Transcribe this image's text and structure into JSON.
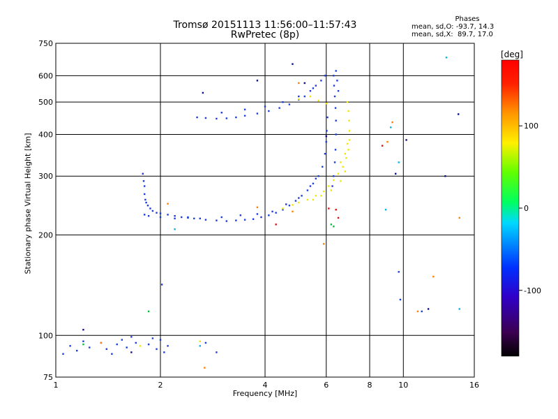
{
  "title": {
    "line1": "Tromsø 20151113 11:56:00–11:57:43",
    "line2": "RwPretec (8p)"
  },
  "phase_box": {
    "header": "Phases",
    "line_o": "mean, sd,O: -93.7, 14.3",
    "line_x": "mean, sd,X:  89.7, 17.0"
  },
  "colorbar": {
    "unit": "[deg]",
    "ticks": [
      "100",
      "0",
      "-100"
    ],
    "tick_values": [
      100,
      0,
      -100
    ],
    "range": [
      -180,
      180
    ]
  },
  "chart_data": {
    "type": "scatter",
    "xlabel": "Frequency [MHz]",
    "ylabel": "Stationary phase Virtual Height [km]",
    "x_scale": "log",
    "y_scale": "log",
    "xlim": [
      1,
      16
    ],
    "ylim": [
      75,
      750
    ],
    "x_ticks": [
      1,
      2,
      4,
      6,
      8,
      10,
      16
    ],
    "x_tick_labels": [
      "1",
      "2",
      "4",
      "6",
      "8",
      "10",
      "16"
    ],
    "y_ticks": [
      75,
      100,
      200,
      300,
      400,
      500,
      600,
      750
    ],
    "y_tick_labels": [
      "75",
      "100",
      "200",
      "300",
      "400",
      "500",
      "600",
      "750"
    ],
    "grid": true,
    "series": [
      {
        "color": "#1a3cdc",
        "points": [
          [
            1.78,
            305
          ],
          [
            1.79,
            290
          ],
          [
            1.8,
            280
          ],
          [
            1.8,
            265
          ],
          [
            1.81,
            255
          ],
          [
            1.82,
            250
          ],
          [
            1.84,
            245
          ],
          [
            1.87,
            240
          ],
          [
            1.9,
            236
          ],
          [
            1.95,
            233
          ],
          [
            2.0,
            232
          ],
          [
            2.1,
            230
          ],
          [
            2.2,
            228
          ],
          [
            2.3,
            226
          ],
          [
            2.4,
            225
          ],
          [
            2.5,
            224
          ],
          [
            2.7,
            222
          ],
          [
            2.9,
            221
          ],
          [
            3.1,
            220
          ],
          [
            3.3,
            221
          ],
          [
            3.5,
            222
          ],
          [
            3.7,
            223
          ],
          [
            3.9,
            226
          ],
          [
            4.1,
            229
          ],
          [
            4.3,
            233
          ],
          [
            4.5,
            238
          ],
          [
            4.7,
            245
          ],
          [
            4.9,
            253
          ],
          [
            5.1,
            262
          ],
          [
            5.3,
            272
          ],
          [
            5.5,
            285
          ],
          [
            5.7,
            300
          ],
          [
            5.85,
            320
          ],
          [
            5.95,
            350
          ],
          [
            6.0,
            380
          ],
          [
            6.02,
            410
          ],
          [
            6.05,
            450
          ],
          [
            1.8,
            230
          ],
          [
            1.85,
            228
          ],
          [
            2.0,
            226
          ],
          [
            2.2,
            224
          ],
          [
            2.4,
            226
          ],
          [
            2.6,
            224
          ],
          [
            3.0,
            226
          ],
          [
            3.4,
            229
          ],
          [
            3.8,
            231
          ],
          [
            4.2,
            235
          ],
          [
            4.6,
            247
          ],
          [
            5.0,
            258
          ],
          [
            5.4,
            280
          ],
          [
            5.6,
            295
          ],
          [
            2.55,
            450
          ],
          [
            2.7,
            448
          ],
          [
            2.9,
            446
          ],
          [
            3.1,
            447
          ],
          [
            3.3,
            450
          ],
          [
            3.5,
            455
          ],
          [
            3.8,
            462
          ],
          [
            4.1,
            470
          ],
          [
            4.4,
            480
          ],
          [
            4.7,
            492
          ],
          [
            5.0,
            508
          ],
          [
            5.2,
            520
          ],
          [
            5.4,
            540
          ],
          [
            5.6,
            560
          ],
          [
            5.8,
            580
          ],
          [
            5.95,
            600
          ],
          [
            3.0,
            465
          ],
          [
            3.5,
            475
          ],
          [
            4.0,
            485
          ],
          [
            4.5,
            500
          ],
          [
            5.0,
            520
          ],
          [
            5.5,
            550
          ],
          [
            6.3,
            600
          ],
          [
            6.32,
            560
          ],
          [
            6.35,
            520
          ],
          [
            6.38,
            480
          ],
          [
            6.4,
            440
          ],
          [
            6.4,
            400
          ],
          [
            6.38,
            360
          ],
          [
            6.35,
            330
          ],
          [
            6.3,
            300
          ],
          [
            6.25,
            280
          ],
          [
            6.4,
            620
          ],
          [
            6.45,
            580
          ],
          [
            6.5,
            540
          ],
          [
            1.05,
            88
          ],
          [
            1.1,
            93
          ],
          [
            1.15,
            90
          ],
          [
            1.2,
            96
          ],
          [
            1.25,
            92
          ],
          [
            1.35,
            95
          ],
          [
            1.4,
            91
          ],
          [
            1.45,
            88
          ],
          [
            1.5,
            94
          ],
          [
            1.55,
            97
          ],
          [
            1.6,
            92
          ],
          [
            1.65,
            99
          ],
          [
            1.7,
            95
          ],
          [
            1.85,
            94
          ],
          [
            1.9,
            98
          ],
          [
            1.95,
            91
          ],
          [
            2.0,
            97
          ],
          [
            2.05,
            89
          ],
          [
            2.1,
            93
          ],
          [
            2.02,
            142
          ],
          [
            2.7,
            95
          ],
          [
            2.9,
            89
          ],
          [
            11.3,
            118
          ],
          [
            9.7,
            155
          ],
          [
            9.8,
            128
          ]
        ]
      },
      {
        "color": "#f0e600",
        "points": [
          [
            4.5,
            240
          ],
          [
            4.8,
            246
          ],
          [
            5.0,
            250
          ],
          [
            5.3,
            255
          ],
          [
            5.6,
            262
          ],
          [
            5.9,
            270
          ],
          [
            6.1,
            280
          ],
          [
            6.3,
            292
          ],
          [
            6.5,
            305
          ],
          [
            6.7,
            320
          ],
          [
            6.85,
            340
          ],
          [
            6.95,
            360
          ],
          [
            7.0,
            385
          ],
          [
            7.0,
            410
          ],
          [
            6.98,
            440
          ],
          [
            6.95,
            470
          ],
          [
            6.9,
            500
          ],
          [
            5.5,
            255
          ],
          [
            5.8,
            262
          ],
          [
            6.2,
            272
          ],
          [
            6.6,
            290
          ],
          [
            6.8,
            310
          ],
          [
            6.6,
            330
          ],
          [
            6.8,
            350
          ],
          [
            6.9,
            375
          ],
          [
            5.0,
            510
          ],
          [
            5.4,
            520
          ],
          [
            5.7,
            505
          ],
          [
            6.0,
            495
          ],
          [
            1.75,
            93
          ],
          [
            2.6,
            96
          ]
        ]
      },
      {
        "color": "#ff8000",
        "points": [
          [
            3.8,
            242
          ],
          [
            4.8,
            235
          ],
          [
            5.9,
            188
          ],
          [
            9.0,
            380
          ],
          [
            9.3,
            435
          ],
          [
            11.0,
            118
          ],
          [
            12.2,
            150
          ],
          [
            14.5,
            225
          ],
          [
            5.0,
            570
          ],
          [
            2.1,
            248
          ],
          [
            1.35,
            95
          ],
          [
            2.68,
            80
          ]
        ]
      },
      {
        "color": "#dc1010",
        "points": [
          [
            6.1,
            240
          ],
          [
            6.4,
            238
          ],
          [
            6.5,
            225
          ],
          [
            8.7,
            370
          ],
          [
            4.3,
            215
          ]
        ]
      },
      {
        "color": "#00b4e6",
        "points": [
          [
            2.2,
            208
          ],
          [
            2.6,
            93
          ],
          [
            13.3,
            680
          ],
          [
            14.5,
            120
          ],
          [
            9.7,
            330
          ],
          [
            8.9,
            238
          ],
          [
            9.2,
            420
          ]
        ]
      },
      {
        "color": "#00c040",
        "points": [
          [
            1.85,
            118
          ],
          [
            1.2,
            94
          ],
          [
            6.2,
            215
          ],
          [
            6.3,
            212
          ]
        ]
      },
      {
        "color": "#0a0a8c",
        "points": [
          [
            3.8,
            580
          ],
          [
            4.8,
            650
          ],
          [
            5.2,
            570
          ],
          [
            6.0,
            395
          ],
          [
            9.5,
            305
          ],
          [
            10.2,
            385
          ],
          [
            11.8,
            120
          ],
          [
            13.2,
            300
          ],
          [
            14.4,
            460
          ],
          [
            1.2,
            104
          ],
          [
            2.65,
            533
          ],
          [
            1.65,
            89
          ]
        ]
      }
    ]
  }
}
